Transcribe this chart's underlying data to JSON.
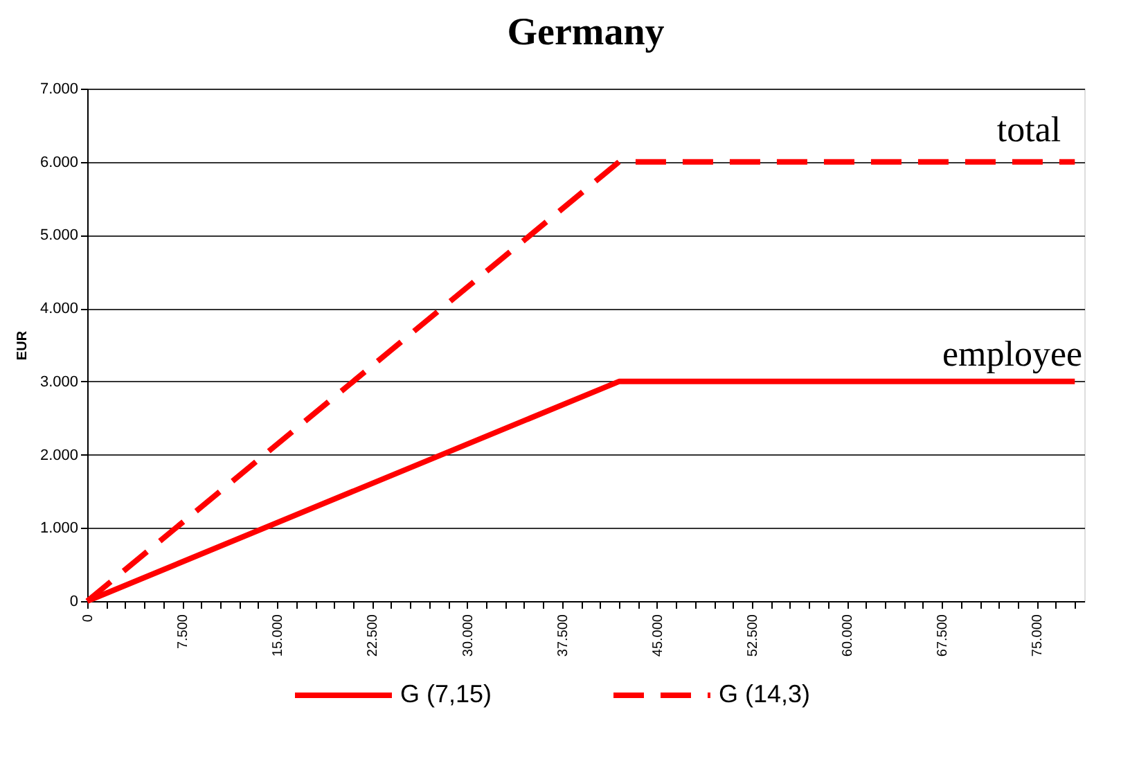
{
  "chart_data": {
    "type": "line",
    "title": "Germany",
    "ylabel": "EUR",
    "x": [
      0,
      42000,
      78000
    ],
    "series": [
      {
        "name": "G (7,15)",
        "color": "#ff0000",
        "values": [
          0,
          3000,
          3000
        ],
        "line_style": "solid"
      },
      {
        "name": "G (14,3)",
        "color": "#ff0000",
        "values": [
          0,
          6000,
          6000
        ],
        "line_style": "dashed"
      }
    ],
    "xlim": [
      0,
      78750
    ],
    "xticks": [
      {
        "value": 0,
        "label": "0"
      },
      {
        "value": 1500,
        "label": null
      },
      {
        "value": 3000,
        "label": null
      },
      {
        "value": 4500,
        "label": null
      },
      {
        "value": 6000,
        "label": null
      },
      {
        "value": 7500,
        "label": "7.500"
      },
      {
        "value": 9000,
        "label": null
      },
      {
        "value": 10500,
        "label": null
      },
      {
        "value": 12000,
        "label": null
      },
      {
        "value": 13500,
        "label": null
      },
      {
        "value": 15000,
        "label": "15.000"
      },
      {
        "value": 16500,
        "label": null
      },
      {
        "value": 18000,
        "label": null
      },
      {
        "value": 19500,
        "label": null
      },
      {
        "value": 21000,
        "label": null
      },
      {
        "value": 22500,
        "label": "22.500"
      },
      {
        "value": 24000,
        "label": null
      },
      {
        "value": 25500,
        "label": null
      },
      {
        "value": 27000,
        "label": null
      },
      {
        "value": 28500,
        "label": null
      },
      {
        "value": 30000,
        "label": "30.000"
      },
      {
        "value": 31500,
        "label": null
      },
      {
        "value": 33000,
        "label": null
      },
      {
        "value": 34500,
        "label": null
      },
      {
        "value": 36000,
        "label": null
      },
      {
        "value": 37500,
        "label": "37.500"
      },
      {
        "value": 39000,
        "label": null
      },
      {
        "value": 40500,
        "label": null
      },
      {
        "value": 42000,
        "label": null
      },
      {
        "value": 43500,
        "label": null
      },
      {
        "value": 45000,
        "label": "45.000"
      },
      {
        "value": 46500,
        "label": null
      },
      {
        "value": 48000,
        "label": null
      },
      {
        "value": 49500,
        "label": null
      },
      {
        "value": 51000,
        "label": null
      },
      {
        "value": 52500,
        "label": "52.500"
      },
      {
        "value": 54000,
        "label": null
      },
      {
        "value": 55500,
        "label": null
      },
      {
        "value": 57000,
        "label": null
      },
      {
        "value": 58500,
        "label": null
      },
      {
        "value": 60000,
        "label": "60.000"
      },
      {
        "value": 61500,
        "label": null
      },
      {
        "value": 63000,
        "label": null
      },
      {
        "value": 64500,
        "label": null
      },
      {
        "value": 66000,
        "label": null
      },
      {
        "value": 67500,
        "label": "67.500"
      },
      {
        "value": 69000,
        "label": null
      },
      {
        "value": 70500,
        "label": null
      },
      {
        "value": 72000,
        "label": null
      },
      {
        "value": 73500,
        "label": null
      },
      {
        "value": 75000,
        "label": "75.000"
      },
      {
        "value": 76500,
        "label": null
      },
      {
        "value": 78000,
        "label": null
      }
    ],
    "ylim": [
      0,
      7000
    ],
    "yticks": [
      {
        "value": 0,
        "label": "0"
      },
      {
        "value": 1000,
        "label": "1.000"
      },
      {
        "value": 2000,
        "label": "2.000"
      },
      {
        "value": 3000,
        "label": "3.000"
      },
      {
        "value": 4000,
        "label": "4.000"
      },
      {
        "value": 5000,
        "label": "5.000"
      },
      {
        "value": 6000,
        "label": "6.000"
      },
      {
        "value": 7000,
        "label": "7.000"
      }
    ],
    "grid": "y",
    "legend": "bottom",
    "marker": "none",
    "annotations": [
      "total",
      "employee"
    ]
  }
}
